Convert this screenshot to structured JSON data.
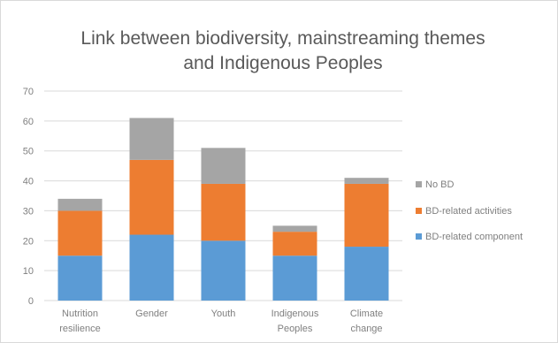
{
  "chart_data": {
    "type": "bar",
    "stacked": true,
    "title": "Link between biodiversity, mainstreaming themes and Indigenous Peoples",
    "title_lines": [
      "Link between biodiversity, mainstreaming themes",
      "and Indigenous Peoples"
    ],
    "categories": [
      [
        "Nutrition",
        "resilience"
      ],
      [
        "Gender"
      ],
      [
        "Youth"
      ],
      [
        "Indigenous",
        "Peoples"
      ],
      [
        "Climate",
        "change"
      ]
    ],
    "series": [
      {
        "name": "BD-related component",
        "color": "#5b9bd5",
        "values": [
          15,
          22,
          20,
          15,
          18
        ]
      },
      {
        "name": "BD-related activities",
        "color": "#ed7d31",
        "values": [
          15,
          25,
          19,
          8,
          21
        ]
      },
      {
        "name": "No BD",
        "color": "#a5a5a5",
        "values": [
          4,
          14,
          12,
          2,
          2
        ]
      }
    ],
    "ylim": [
      0,
      70
    ],
    "yticks": [
      0,
      10,
      20,
      30,
      40,
      50,
      60,
      70
    ],
    "grid": true,
    "legend_position": "right"
  }
}
